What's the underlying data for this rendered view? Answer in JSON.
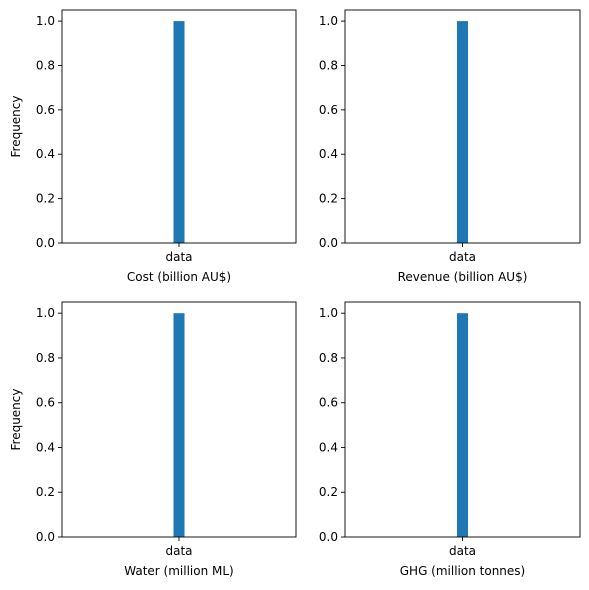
{
  "chart_data": [
    {
      "type": "bar",
      "categories": [
        "data"
      ],
      "values": [
        1.0
      ],
      "xlabel": "Cost (billion AU$)",
      "ylabel": "Frequency",
      "ylim": [
        0,
        1.0
      ],
      "yticks": [
        "0.0",
        "0.2",
        "0.4",
        "0.6",
        "0.8",
        "1.0"
      ],
      "color": "#1f77b4"
    },
    {
      "type": "bar",
      "categories": [
        "data"
      ],
      "values": [
        1.0
      ],
      "xlabel": "Revenue (billion AU$)",
      "ylabel": "",
      "ylim": [
        0,
        1.0
      ],
      "yticks": [
        "0.0",
        "0.2",
        "0.4",
        "0.6",
        "0.8",
        "1.0"
      ],
      "color": "#1f77b4"
    },
    {
      "type": "bar",
      "categories": [
        "data"
      ],
      "values": [
        1.0
      ],
      "xlabel": "Water (million ML)",
      "ylabel": "Frequency",
      "ylim": [
        0,
        1.0
      ],
      "yticks": [
        "0.0",
        "0.2",
        "0.4",
        "0.6",
        "0.8",
        "1.0"
      ],
      "color": "#1f77b4"
    },
    {
      "type": "bar",
      "categories": [
        "data"
      ],
      "values": [
        1.0
      ],
      "xlabel": "GHG (million tonnes)",
      "ylabel": "",
      "ylim": [
        0,
        1.0
      ],
      "yticks": [
        "0.0",
        "0.2",
        "0.4",
        "0.6",
        "0.8",
        "1.0"
      ],
      "color": "#1f77b4"
    }
  ]
}
